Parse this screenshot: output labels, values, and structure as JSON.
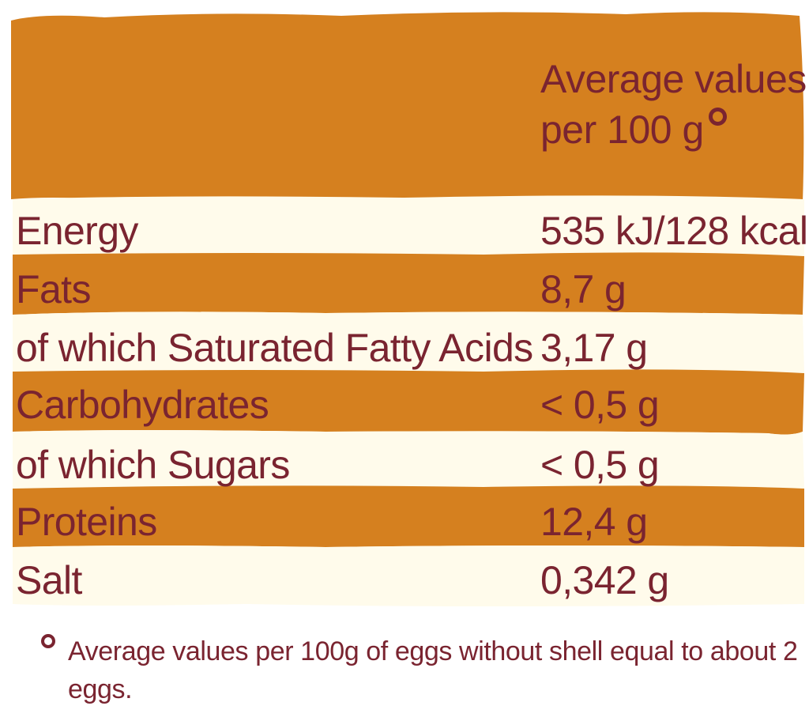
{
  "colors": {
    "orange_band": "#d5801f",
    "cream_band": "#fffbeb",
    "text": "#7a2430"
  },
  "header": {
    "column_title_line1": "Average values",
    "column_title_line2": "per 100 g"
  },
  "rows": [
    {
      "label": "Energy",
      "value": "535 kJ/128 kcal",
      "band": "cream"
    },
    {
      "label": "Fats",
      "value": "8,7 g",
      "band": "orange"
    },
    {
      "label": "of which Saturated Fatty Acids",
      "value": "3,17 g",
      "band": "cream"
    },
    {
      "label": "Carbohydrates",
      "value": "< 0,5 g",
      "band": "orange"
    },
    {
      "label": "of which Sugars",
      "value": "< 0,5 g",
      "band": "cream"
    },
    {
      "label": "Proteins",
      "value": "12,4 g",
      "band": "orange"
    },
    {
      "label": "Salt",
      "value": "0,342 g",
      "band": "cream"
    }
  ],
  "footnote": {
    "text": "Average values per 100g of eggs without shell equal to about 2 eggs."
  }
}
